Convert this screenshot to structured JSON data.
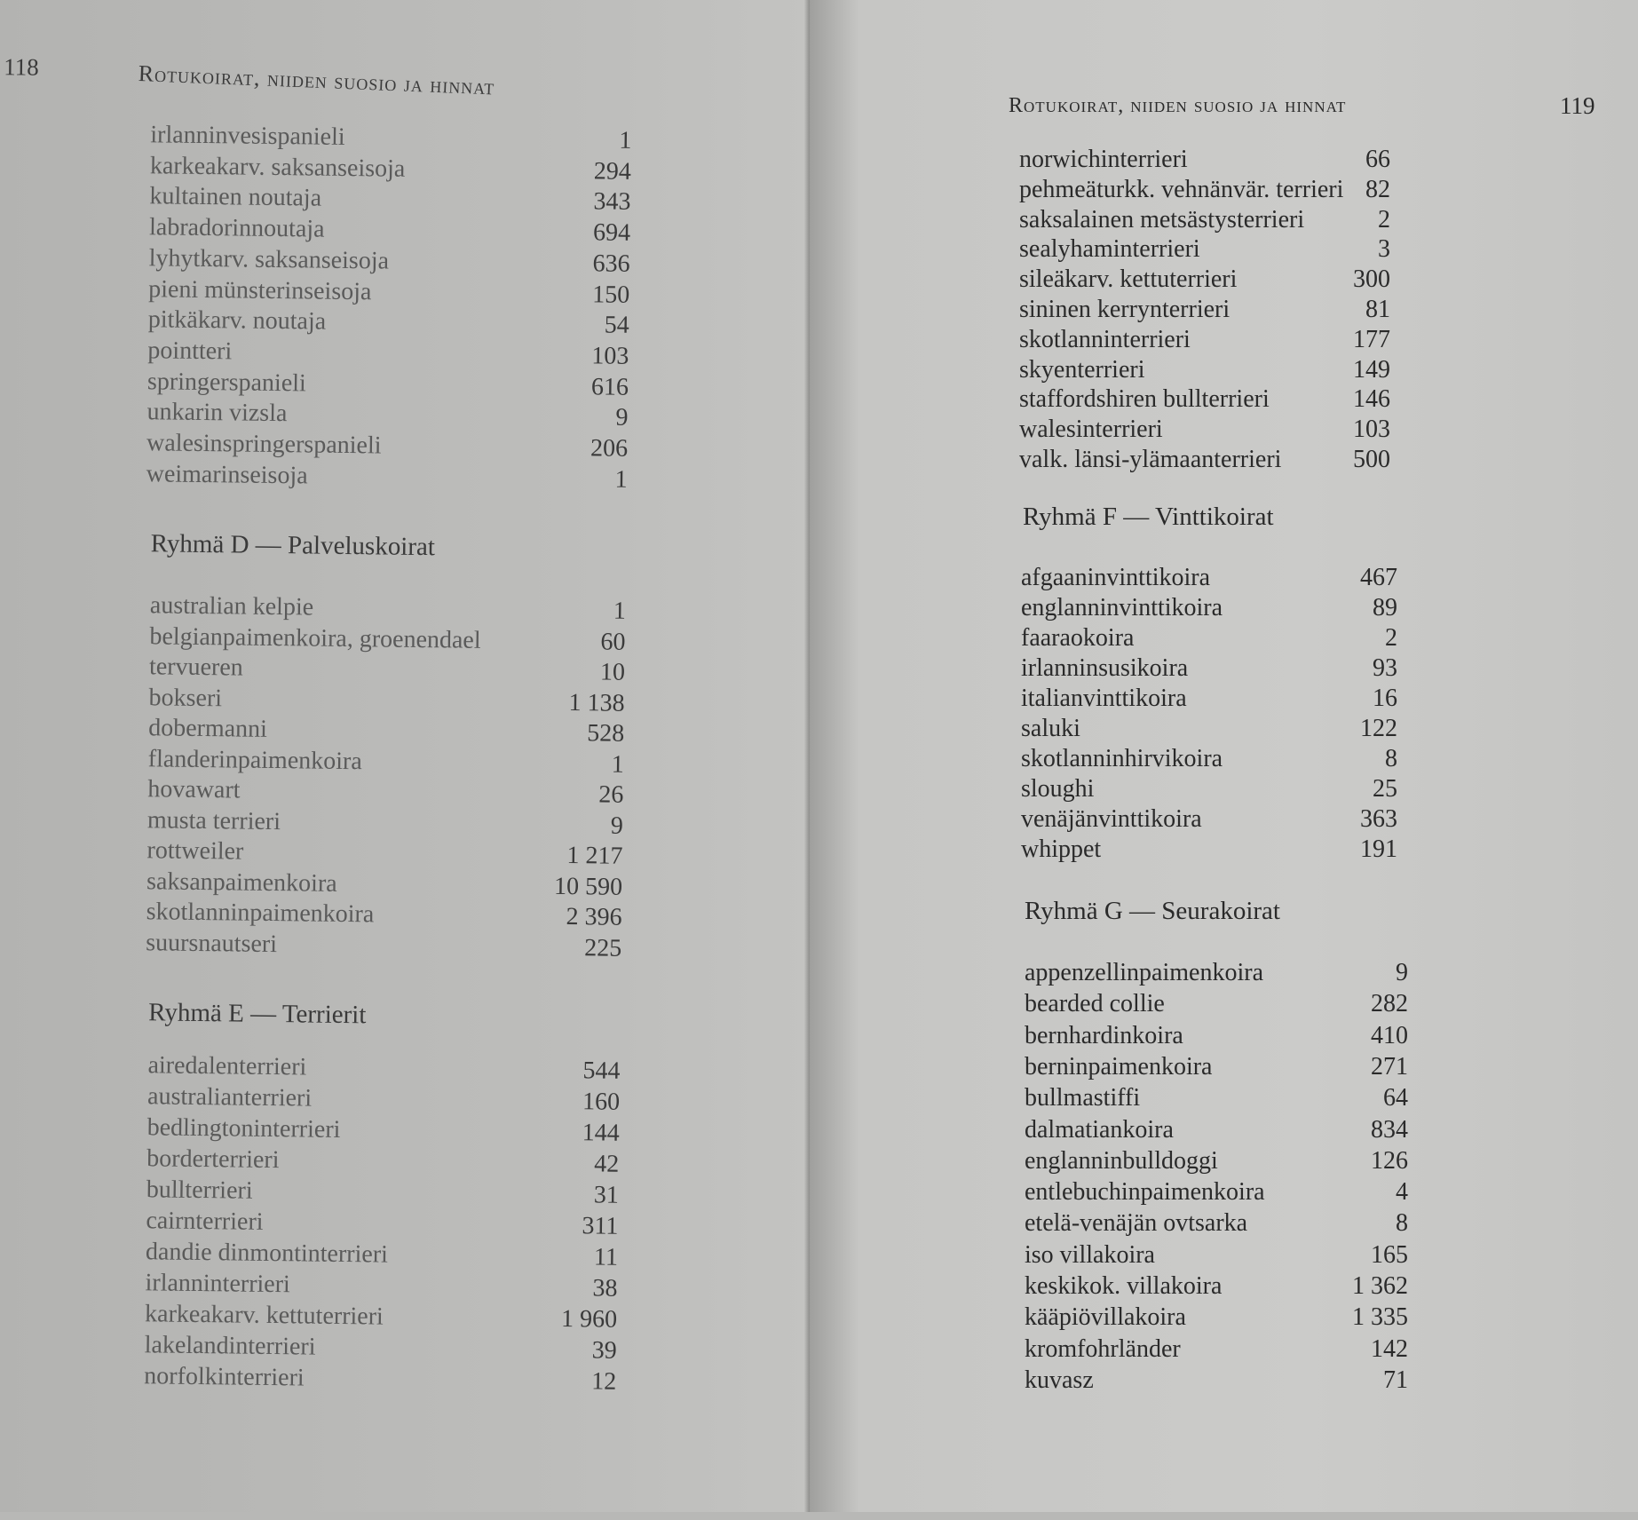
{
  "left_page": {
    "page_number": "118",
    "running_head": "Rotukoirat, niiden suosio ja hinnat",
    "group_c_tail": [
      {
        "name": "irlanninvesispanieli",
        "count": "1"
      },
      {
        "name": "karkeakarv. saksanseisoja",
        "count": "294"
      },
      {
        "name": "kultainen noutaja",
        "count": "343"
      },
      {
        "name": "labradorinnoutaja",
        "count": "694"
      },
      {
        "name": "lyhytkarv. saksanseisoja",
        "count": "636"
      },
      {
        "name": "pieni münsterinseisoja",
        "count": "150"
      },
      {
        "name": "pitkäkarv. noutaja",
        "count": "54"
      },
      {
        "name": "pointteri",
        "count": "103"
      },
      {
        "name": "springerspanieli",
        "count": "616"
      },
      {
        "name": "unkarin vizsla",
        "count": "9"
      },
      {
        "name": "walesinspringerspanieli",
        "count": "206"
      },
      {
        "name": "weimarinseisoja",
        "count": "1"
      }
    ],
    "group_d": {
      "heading": "Ryhmä D — Palveluskoirat",
      "items": [
        {
          "name": "australian kelpie",
          "count": "1"
        },
        {
          "name": "belgianpaimenkoira, groenendael",
          "count": "60"
        },
        {
          "name": "tervueren",
          "count": "10"
        },
        {
          "name": "bokseri",
          "count": "1 138"
        },
        {
          "name": "dobermanni",
          "count": "528"
        },
        {
          "name": "flanderinpaimenkoira",
          "count": "1"
        },
        {
          "name": "hovawart",
          "count": "26"
        },
        {
          "name": "musta terrieri",
          "count": "9"
        },
        {
          "name": "rottweiler",
          "count": "1 217"
        },
        {
          "name": "saksanpaimenkoira",
          "count": "10 590"
        },
        {
          "name": "skotlanninpaimenkoira",
          "count": "2 396"
        },
        {
          "name": "suursnautseri",
          "count": "225"
        }
      ]
    },
    "group_e": {
      "heading": "Ryhmä E — Terrierit",
      "items": [
        {
          "name": "airedalenterrieri",
          "count": "544"
        },
        {
          "name": "australianterrieri",
          "count": "160"
        },
        {
          "name": "bedlingtoninterrieri",
          "count": "144"
        },
        {
          "name": "borderterrieri",
          "count": "42"
        },
        {
          "name": "bullterrieri",
          "count": "31"
        },
        {
          "name": "cairnterrieri",
          "count": "311"
        },
        {
          "name": "dandie dinmontinterrieri",
          "count": "11"
        },
        {
          "name": "irlanninterrieri",
          "count": "38"
        },
        {
          "name": "karkeakarv. kettuterrieri",
          "count": "1 960"
        },
        {
          "name": "lakelandinterrieri",
          "count": "39"
        },
        {
          "name": "norfolkinterrieri",
          "count": "12"
        }
      ]
    }
  },
  "right_page": {
    "page_number": "119",
    "running_head": "Rotukoirat, niiden suosio ja hinnat",
    "group_e_tail": [
      {
        "name": "norwichinterrieri",
        "count": "66"
      },
      {
        "name": "pehmeäturkk. vehnänvär. terrieri",
        "count": "82"
      },
      {
        "name": "saksalainen metsästysterrieri",
        "count": "2"
      },
      {
        "name": "sealyhaminterrieri",
        "count": "3"
      },
      {
        "name": "sileäkarv. kettuterrieri",
        "count": "300"
      },
      {
        "name": "sininen kerrynterrieri",
        "count": "81"
      },
      {
        "name": "skotlanninterrieri",
        "count": "177"
      },
      {
        "name": "skyenterrieri",
        "count": "149"
      },
      {
        "name": "staffordshiren bullterrieri",
        "count": "146"
      },
      {
        "name": "walesinterrieri",
        "count": "103"
      },
      {
        "name": "valk. länsi-ylämaanterrieri",
        "count": "500"
      }
    ],
    "group_f": {
      "heading": "Ryhmä F — Vinttikoirat",
      "items": [
        {
          "name": "afgaaninvinttikoira",
          "count": "467"
        },
        {
          "name": "englanninvinttikoira",
          "count": "89"
        },
        {
          "name": "faaraokoira",
          "count": "2"
        },
        {
          "name": "irlanninsusikoira",
          "count": "93"
        },
        {
          "name": "italianvinttikoira",
          "count": "16"
        },
        {
          "name": "saluki",
          "count": "122"
        },
        {
          "name": "skotlanninhirvikoira",
          "count": "8"
        },
        {
          "name": "sloughi",
          "count": "25"
        },
        {
          "name": "venäjänvinttikoira",
          "count": "363"
        },
        {
          "name": "whippet",
          "count": "191"
        }
      ]
    },
    "group_g": {
      "heading": "Ryhmä G — Seurakoirat",
      "items": [
        {
          "name": "appenzellinpaimenkoira",
          "count": "9"
        },
        {
          "name": "bearded collie",
          "count": "282"
        },
        {
          "name": "bernhardinkoira",
          "count": "410"
        },
        {
          "name": "berninpaimenkoira",
          "count": "271"
        },
        {
          "name": "bullmastiffi",
          "count": "64"
        },
        {
          "name": "dalmatiankoira",
          "count": "834"
        },
        {
          "name": "englanninbulldoggi",
          "count": "126"
        },
        {
          "name": "entlebuchinpaimenkoira",
          "count": "4"
        },
        {
          "name": "etelä-venäjän ovtsarka",
          "count": "8"
        },
        {
          "name": "iso villakoira",
          "count": "165"
        },
        {
          "name": "keskikok. villakoira",
          "count": "1 362"
        },
        {
          "name": "kääpiövillakoira",
          "count": "1 335"
        },
        {
          "name": "kromfohrländer",
          "count": "142"
        },
        {
          "name": "kuvasz",
          "count": "71"
        }
      ]
    }
  }
}
